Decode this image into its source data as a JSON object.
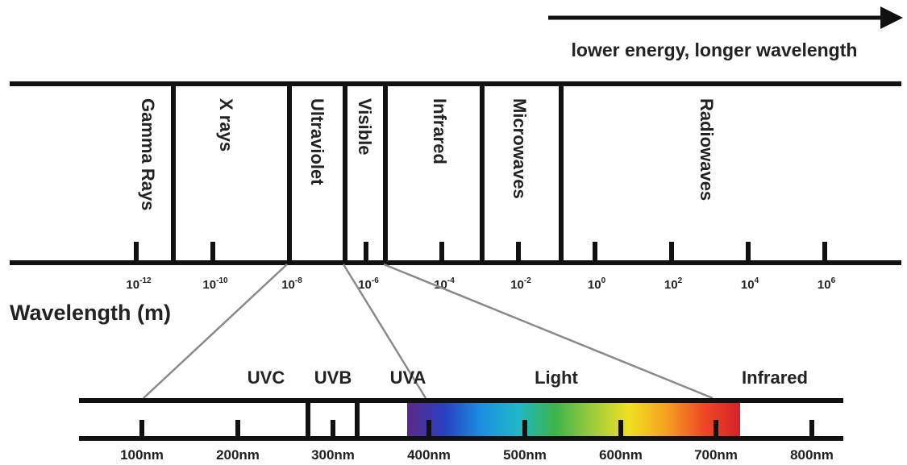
{
  "direction_label": "lower energy, longer wavelength",
  "axis_label": "Wavelength (m)",
  "bands": [
    "Gamma Rays",
    "X rays",
    "Ultraviolet",
    "Visible",
    "Infrared",
    "Microwaves",
    "Radiowaves"
  ],
  "wavelength_ticks": [
    {
      "base": "10",
      "exp": "-12"
    },
    {
      "base": "10",
      "exp": "-10"
    },
    {
      "base": "10",
      "exp": "-8"
    },
    {
      "base": "10",
      "exp": "-6"
    },
    {
      "base": "10",
      "exp": "-4"
    },
    {
      "base": "10",
      "exp": "-2"
    },
    {
      "base": "10",
      "exp": "0"
    },
    {
      "base": "10",
      "exp": "2"
    },
    {
      "base": "10",
      "exp": "4"
    },
    {
      "base": "10",
      "exp": "6"
    }
  ],
  "sub_regions": [
    "UVC",
    "UVB",
    "UVA",
    "Light",
    "Infrared"
  ],
  "nm_ticks": [
    "100nm",
    "200nm",
    "300nm",
    "400nm",
    "500nm",
    "600nm",
    "700nm",
    "800nm"
  ],
  "colors": {
    "line": "#111111",
    "zoom_line": "#888888",
    "spectrum": [
      "#5b2a86",
      "#2a3ec0",
      "#1a8fe0",
      "#20b8c8",
      "#3cb44a",
      "#9ccc3c",
      "#f0e020",
      "#f6a020",
      "#ee4a24",
      "#d8202a"
    ]
  }
}
